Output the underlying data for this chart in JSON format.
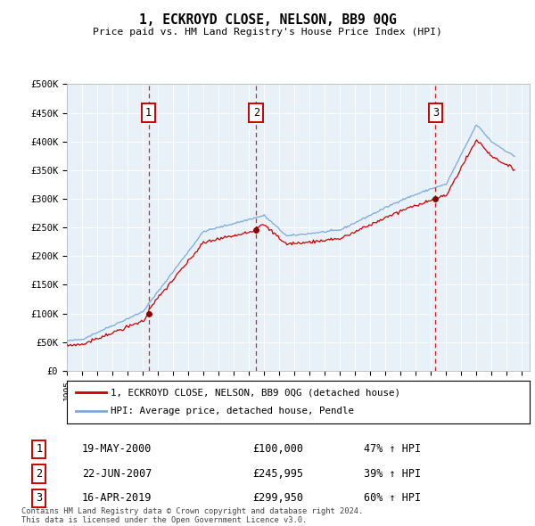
{
  "title": "1, ECKROYD CLOSE, NELSON, BB9 0QG",
  "subtitle": "Price paid vs. HM Land Registry's House Price Index (HPI)",
  "footer": "Contains HM Land Registry data © Crown copyright and database right 2024.\nThis data is licensed under the Open Government Licence v3.0.",
  "legend_property": "1, ECKROYD CLOSE, NELSON, BB9 0QG (detached house)",
  "legend_hpi": "HPI: Average price, detached house, Pendle",
  "ylim": [
    0,
    500000
  ],
  "yticks": [
    0,
    50000,
    100000,
    150000,
    200000,
    250000,
    300000,
    350000,
    400000,
    450000,
    500000
  ],
  "ytick_labels": [
    "£0",
    "£50K",
    "£100K",
    "£150K",
    "£200K",
    "£250K",
    "£300K",
    "£350K",
    "£400K",
    "£450K",
    "£500K"
  ],
  "xlim_start": 1995.0,
  "xlim_end": 2025.5,
  "background_color": "#e8f0f8",
  "red_color": "#cc0000",
  "blue_color": "#7aaadd",
  "sale_marker_color": "#880000",
  "transactions": [
    {
      "num": 1,
      "date": "19-MAY-2000",
      "price": 100000,
      "year": 2000.38,
      "pct": "47% ↑ HPI"
    },
    {
      "num": 2,
      "date": "22-JUN-2007",
      "price": 245995,
      "year": 2007.47,
      "pct": "39% ↑ HPI"
    },
    {
      "num": 3,
      "date": "16-APR-2019",
      "price": 299950,
      "year": 2019.29,
      "pct": "60% ↑ HPI"
    }
  ]
}
